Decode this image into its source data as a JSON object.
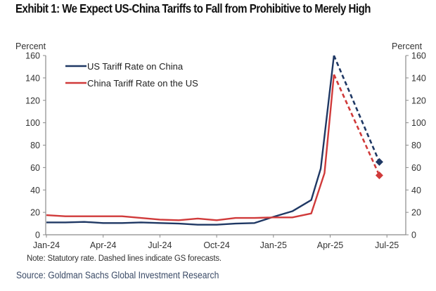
{
  "title": "Exhibit 1: We Expect US-China Tariffs to Fall from Prohibitive to Merely High",
  "note": "Note: Statutory rate. Dashed lines indicate GS forecasts.",
  "source": "Source: Goldman Sachs Global Investment Research",
  "chart_data": {
    "type": "line",
    "title": "Exhibit 1: We Expect US-China Tariffs to Fall from Prohibitive to Merely High",
    "xlabel": "",
    "ylabel_left": "Percent",
    "ylabel_right": "Percent",
    "ylim": [
      0,
      160
    ],
    "yticks": [
      0,
      20,
      40,
      60,
      80,
      100,
      120,
      140,
      160
    ],
    "xticks": [
      "Jan-24",
      "Apr-24",
      "Jul-24",
      "Oct-24",
      "Jan-25",
      "Apr-25",
      "Jul-25"
    ],
    "x_range_months": [
      0,
      19
    ],
    "grid": false,
    "legend_position": "top-left",
    "series": [
      {
        "name": "US Tariff Rate on China",
        "color": "#1f3864",
        "actual": {
          "x": [
            0,
            1,
            2,
            3,
            4,
            5,
            6,
            7,
            8,
            9,
            10,
            11,
            12,
            13,
            14,
            14.5,
            15.2
          ],
          "y": [
            11,
            11,
            11.5,
            10.5,
            10.5,
            11,
            10.5,
            10,
            9,
            9,
            10,
            10.5,
            16,
            21,
            31,
            59,
            160
          ]
        },
        "forecast": {
          "x": [
            15.2,
            17.6
          ],
          "y": [
            160,
            65
          ]
        }
      },
      {
        "name": "China Tariff Rate on the US",
        "color": "#d03a3a",
        "actual": {
          "x": [
            0,
            1,
            2,
            3,
            4,
            5,
            6,
            7,
            8,
            9,
            10,
            11,
            12,
            13,
            14,
            14.7,
            15.2
          ],
          "y": [
            17.5,
            16.5,
            16.5,
            16.5,
            16.5,
            15,
            13.5,
            13,
            14.5,
            13,
            15,
            15,
            15.5,
            15.5,
            19,
            55,
            143
          ]
        },
        "forecast": {
          "x": [
            15.2,
            17.6
          ],
          "y": [
            143,
            53
          ]
        }
      }
    ]
  }
}
